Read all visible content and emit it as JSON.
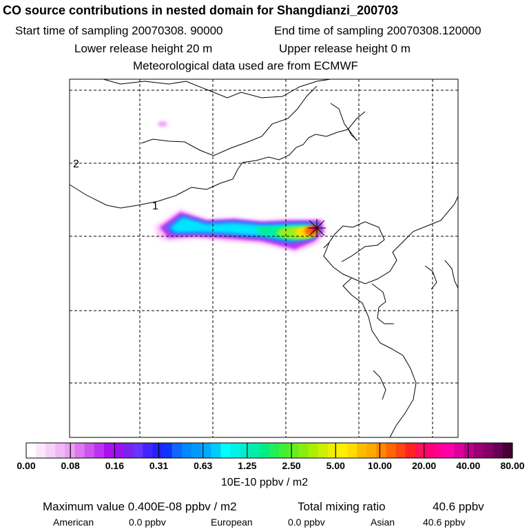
{
  "header": {
    "title": "CO  source contributions in nested domain for Shangdianzi_200703",
    "start_label": "Start time of sampling 20070308. 90000",
    "end_label": "End time of sampling 20070308.120000",
    "lower_label": "Lower release height   20 m",
    "upper_label": "Upper release height    0 m",
    "met_label": "Meteorological data used are from ECMWF"
  },
  "map": {
    "contour_labels": [
      "1",
      "2"
    ],
    "plume_colors": [
      "#ff88ff",
      "#cc33ff",
      "#9933ff",
      "#3399ff",
      "#00e5ff",
      "#00ff99",
      "#66ff33",
      "#ffff00",
      "#ff6600",
      "#ff0033"
    ]
  },
  "colorbar": {
    "tick_labels": [
      "0.00",
      "0.08",
      "0.16",
      "0.31",
      "0.63",
      "1.25",
      "2.50",
      "5.00",
      "10.00",
      "20.00",
      "40.00",
      "80.00"
    ],
    "unit": "10E-10 ppbv / m2",
    "colors": [
      "#ffffff",
      "#fbe8fb",
      "#f5d0f8",
      "#efb8f5",
      "#e9a0f2",
      "#dd77ee",
      "#cc55ee",
      "#bb33ee",
      "#aa11ee",
      "#9911ee",
      "#7a22ee",
      "#6633ff",
      "#4422ff",
      "#2222ff",
      "#1133ff",
      "#1166ff",
      "#0088ff",
      "#0099ff",
      "#00aaff",
      "#00ccff",
      "#00ffff",
      "#00f2e6",
      "#00eecc",
      "#00eeaa",
      "#00ee88",
      "#22ee55",
      "#44ee33",
      "#66ee22",
      "#88ee11",
      "#aaee00",
      "#ccee00",
      "#eeee00",
      "#ffee00",
      "#ffdd00",
      "#ffbb00",
      "#ffaa00",
      "#ff8800",
      "#ff6600",
      "#ff4411",
      "#ff2222",
      "#ff1155",
      "#ff0077",
      "#ff0099",
      "#ff00aa",
      "#dd0099",
      "#bb0088",
      "#990077",
      "#880066",
      "#660055",
      "#440033"
    ]
  },
  "footer": {
    "max_label": "Maximum value  0.400E-08 ppbv / m2",
    "total_label": "Total mixing ratio",
    "total_value": "40.6 ppbv",
    "american_label": "American",
    "american_value": "0.0 ppbv",
    "european_label": "European",
    "european_value": "0.0 ppbv",
    "asian_label": "Asian",
    "asian_value": "40.6 ppbv"
  }
}
